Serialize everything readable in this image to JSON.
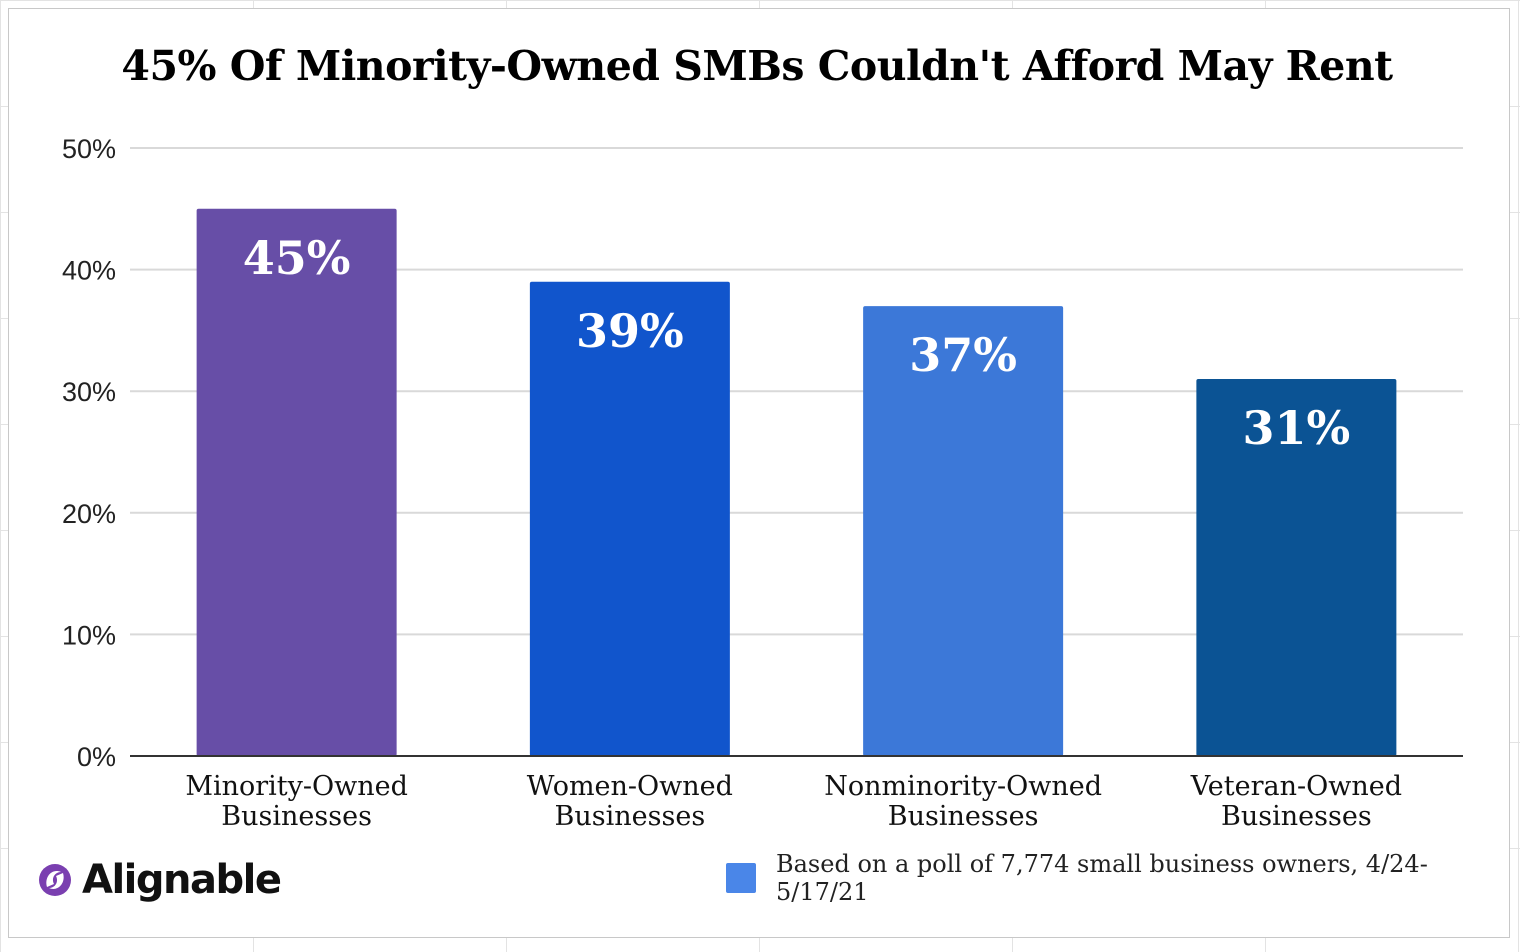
{
  "title": "45% Of Minority-Owned SMBs Couldn't Afford May Rent",
  "chart_data": {
    "type": "bar",
    "title": "45% Of Minority-Owned SMBs Couldn't Afford May Rent",
    "categories": [
      [
        "Minority-Owned",
        "Businesses"
      ],
      [
        "Women-Owned",
        "Businesses"
      ],
      [
        "Nonminority-Owned",
        "Businesses"
      ],
      [
        "Veteran-Owned",
        "Businesses"
      ]
    ],
    "values": [
      45,
      39,
      37,
      31
    ],
    "data_labels": [
      "45%",
      "39%",
      "37%",
      "31%"
    ],
    "colors": [
      "#674ea7",
      "#1155cc",
      "#3c78d8",
      "#0b5394"
    ],
    "yticks": [
      "0%",
      "10%",
      "20%",
      "30%",
      "40%",
      "50%"
    ],
    "ylim": [
      0,
      50
    ],
    "grid": true,
    "xlabel": "",
    "ylabel": ""
  },
  "footer": {
    "brand": "Alignable",
    "note": "Based on a poll of 7,774 small business owners, 4/24-5/17/21",
    "legend_color": "#4a86e8"
  }
}
